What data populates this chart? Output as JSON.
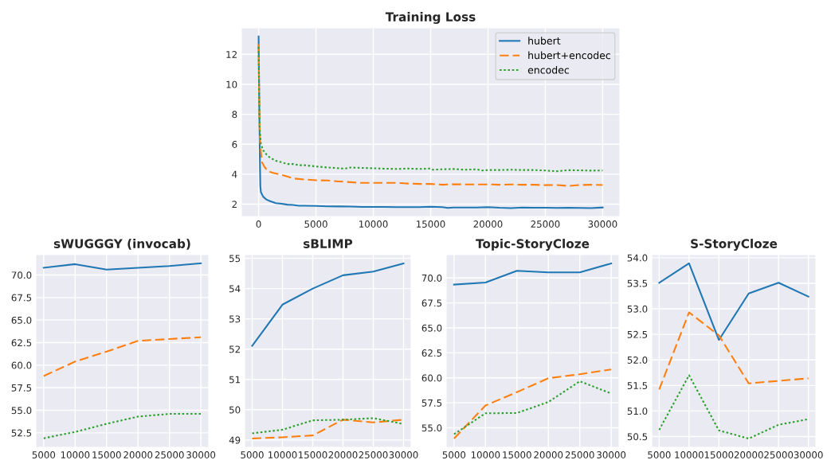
{
  "chart_data": [
    {
      "type": "line",
      "title": "Training Loss",
      "xlim": [
        -1500,
        31500
      ],
      "xticks": [
        0,
        5000,
        10000,
        15000,
        20000,
        25000,
        30000
      ],
      "ylim": [
        1.18,
        13.77
      ],
      "yticks": [
        2,
        4,
        6,
        8,
        10,
        12
      ],
      "grid": true,
      "legend": "top right",
      "series": [
        {
          "name": "hubert",
          "color": "#1f77b4",
          "line_style": "solid",
          "x": [
            0,
            50,
            100,
            150,
            200,
            400,
            700,
            1000,
            1500,
            2000,
            2500,
            3000,
            3500,
            4000,
            5000,
            6000,
            7000,
            8000,
            9000,
            10000,
            11000,
            12000,
            13000,
            14000,
            15000,
            16000,
            16500,
            17000,
            18000,
            19000,
            20000,
            21000,
            22000,
            23000,
            24000,
            25000,
            26000,
            27000,
            28000,
            29000,
            30000
          ],
          "values": [
            13.2,
            9,
            5.5,
            3.2,
            2.8,
            2.5,
            2.3,
            2.2,
            2.07,
            2.03,
            1.97,
            1.95,
            1.9,
            1.9,
            1.88,
            1.86,
            1.85,
            1.84,
            1.82,
            1.82,
            1.82,
            1.8,
            1.8,
            1.8,
            1.83,
            1.8,
            1.75,
            1.78,
            1.78,
            1.78,
            1.8,
            1.76,
            1.74,
            1.78,
            1.76,
            1.76,
            1.75,
            1.76,
            1.75,
            1.74,
            1.78
          ]
        },
        {
          "name": "hubert+encodec",
          "color": "#ff7f0e",
          "line_style": "dashed",
          "x": [
            0,
            50,
            100,
            200,
            300,
            500,
            800,
            1200,
            1500,
            2000,
            2500,
            3000,
            4000,
            5000,
            6000,
            7000,
            8000,
            9000,
            10000,
            11000,
            12000,
            13000,
            14000,
            15000,
            16000,
            17000,
            18000,
            19000,
            20000,
            21000,
            22000,
            23000,
            24000,
            25000,
            26000,
            27000,
            28000,
            29000,
            30000
          ],
          "values": [
            12.7,
            9,
            6.5,
            5.5,
            4.8,
            4.5,
            4.2,
            4.1,
            4.05,
            3.95,
            3.85,
            3.72,
            3.65,
            3.6,
            3.58,
            3.52,
            3.47,
            3.42,
            3.42,
            3.43,
            3.42,
            3.38,
            3.35,
            3.35,
            3.3,
            3.33,
            3.32,
            3.32,
            3.32,
            3.3,
            3.32,
            3.3,
            3.3,
            3.27,
            3.28,
            3.22,
            3.28,
            3.3,
            3.28
          ]
        },
        {
          "name": "encodec",
          "color": "#2ca02c",
          "line_style": "dotted",
          "x": [
            0,
            50,
            100,
            200,
            400,
            700,
            1000,
            1500,
            2000,
            2500,
            3000,
            3500,
            4000,
            5000,
            6000,
            7000,
            7500,
            8000,
            9000,
            10000,
            11000,
            12000,
            13000,
            14000,
            15000,
            15200,
            16000,
            17000,
            18000,
            19000,
            19500,
            20000,
            21000,
            22000,
            23000,
            24000,
            25000,
            26000,
            27000,
            28000,
            29000,
            30000
          ],
          "values": [
            12.5,
            9,
            7,
            6,
            5.6,
            5.3,
            5.1,
            4.9,
            4.8,
            4.68,
            4.68,
            4.6,
            4.6,
            4.52,
            4.45,
            4.4,
            4.37,
            4.45,
            4.42,
            4.4,
            4.37,
            4.35,
            4.38,
            4.35,
            4.38,
            4.3,
            4.33,
            4.35,
            4.3,
            4.33,
            4.25,
            4.28,
            4.28,
            4.3,
            4.28,
            4.28,
            4.25,
            4.2,
            4.27,
            4.26,
            4.24,
            4.25
          ]
        }
      ]
    },
    {
      "type": "line",
      "title": "sWUGGGY (invocab)",
      "x": [
        5000,
        10000,
        15000,
        20000,
        25000,
        30000
      ],
      "xlim": [
        3750,
        31250
      ],
      "xticks": [
        5000,
        10000,
        15000,
        20000,
        25000,
        30000
      ],
      "ylim": [
        50.9,
        72.25
      ],
      "yticks": [
        52.5,
        {
          "value": 55,
          "label": "55.0"
        },
        57.5,
        {
          "value": 60,
          "label": "60.0"
        },
        62.5,
        {
          "value": 65,
          "label": "65.0"
        },
        67.5,
        {
          "value": 70,
          "label": "70.0"
        }
      ],
      "grid": true,
      "series": [
        {
          "color": "#1f77b4",
          "line_style": "solid",
          "values": [
            70.8,
            71.2,
            70.6,
            70.8,
            71.0,
            71.3
          ]
        },
        {
          "color": "#ff7f0e",
          "line_style": "dashed",
          "values": [
            58.8,
            60.4,
            61.5,
            62.7,
            62.9,
            63.1
          ]
        },
        {
          "color": "#2ca02c",
          "line_style": "dotted",
          "values": [
            51.9,
            52.6,
            53.5,
            54.3,
            54.6,
            54.6
          ]
        }
      ]
    },
    {
      "type": "line",
      "title": "sBLIMP",
      "x": [
        5000,
        10000,
        15000,
        20000,
        25000,
        30000
      ],
      "xlim": [
        3750,
        31250
      ],
      "xticks": [
        5000,
        10000,
        15000,
        20000,
        25000,
        30000
      ],
      "ylim": [
        48.76,
        55.12
      ],
      "yticks": [
        49,
        50,
        51,
        52,
        53,
        54,
        55
      ],
      "grid": true,
      "series": [
        {
          "color": "#1f77b4",
          "line_style": "solid",
          "values": [
            52.11,
            53.47,
            54.0,
            54.44,
            54.56,
            54.83
          ]
        },
        {
          "color": "#ff7f0e",
          "line_style": "dashed",
          "values": [
            49.05,
            49.09,
            49.15,
            49.67,
            49.58,
            49.67
          ]
        },
        {
          "color": "#2ca02c",
          "line_style": "dotted",
          "values": [
            49.22,
            49.34,
            49.65,
            49.67,
            49.72,
            49.53
          ]
        }
      ]
    },
    {
      "type": "line",
      "title": "Topic-StoryCloze",
      "x": [
        5000,
        10000,
        15000,
        20000,
        25000,
        30000
      ],
      "xlim": [
        3750,
        31250
      ],
      "xticks": [
        5000,
        10000,
        15000,
        20000,
        25000,
        30000
      ],
      "ylim": [
        53.05,
        72.33
      ],
      "yticks": [
        {
          "value": 55,
          "label": "55.0"
        },
        57.5,
        {
          "value": 60,
          "label": "60.0"
        },
        62.5,
        {
          "value": 65,
          "label": "65.0"
        },
        67.5,
        {
          "value": 70,
          "label": "70.0"
        }
      ],
      "grid": true,
      "series": [
        {
          "color": "#1f77b4",
          "line_style": "solid",
          "values": [
            69.33,
            69.54,
            70.72,
            70.56,
            70.56,
            71.45
          ]
        },
        {
          "color": "#ff7f0e",
          "line_style": "dashed",
          "values": [
            53.93,
            57.23,
            58.57,
            59.96,
            60.36,
            60.84
          ]
        },
        {
          "color": "#2ca02c",
          "line_style": "dotted",
          "values": [
            54.36,
            56.45,
            56.48,
            57.58,
            59.66,
            58.43
          ]
        }
      ]
    },
    {
      "type": "line",
      "title": "S-StoryCloze",
      "x": [
        5000,
        10000,
        15000,
        20000,
        25000,
        30000
      ],
      "xlim": [
        3750,
        31250
      ],
      "xticks": [
        5000,
        10000,
        15000,
        20000,
        25000,
        30000
      ],
      "ylim": [
        50.29,
        54.06
      ],
      "yticks": [
        50.5,
        {
          "value": 51,
          "label": "51.0"
        },
        51.5,
        {
          "value": 52,
          "label": "52.0"
        },
        52.5,
        {
          "value": 53,
          "label": "53.0"
        },
        53.5,
        {
          "value": 54,
          "label": "54.0"
        }
      ],
      "grid": true,
      "series": [
        {
          "color": "#1f77b4",
          "line_style": "solid",
          "values": [
            53.51,
            53.89,
            52.39,
            53.3,
            53.51,
            53.24
          ]
        },
        {
          "color": "#ff7f0e",
          "line_style": "dashed",
          "values": [
            51.42,
            52.93,
            52.48,
            51.54,
            51.59,
            51.64
          ]
        },
        {
          "color": "#2ca02c",
          "line_style": "dotted",
          "values": [
            50.63,
            51.7,
            50.62,
            50.46,
            50.73,
            50.84
          ]
        }
      ]
    }
  ]
}
